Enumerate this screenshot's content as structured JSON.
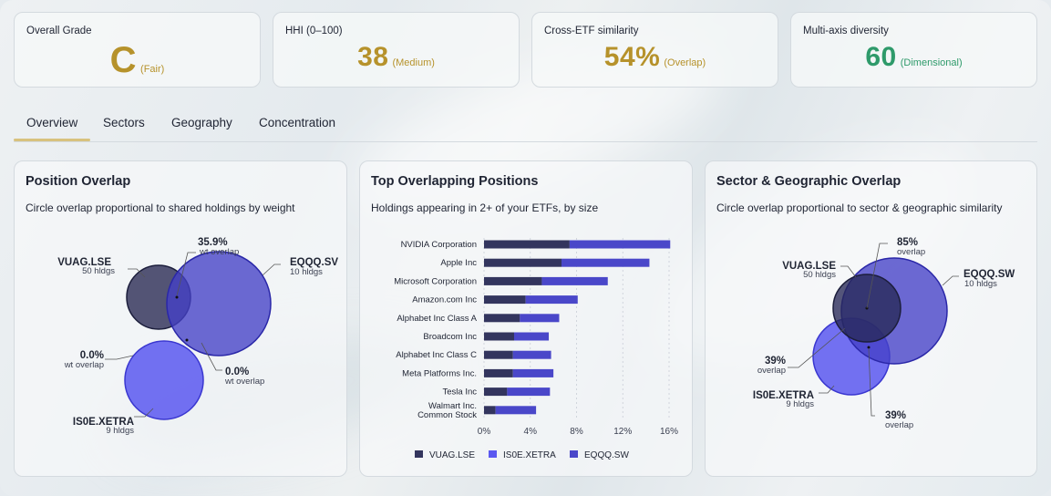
{
  "kpis": [
    {
      "label": "Overall Grade",
      "value": "C",
      "sub": "(Fair)",
      "color": "#b6922b"
    },
    {
      "label": "HHI (0–100)",
      "value": "38",
      "sub": "(Medium)",
      "color": "#b6922b"
    },
    {
      "label": "Cross-ETF similarity",
      "value": "54%",
      "sub": "(Overlap)",
      "color": "#b6922b"
    },
    {
      "label": "Multi-axis diversity",
      "value": "60",
      "sub": "(Dimensional)",
      "color": "#2e9a6a"
    }
  ],
  "tabs": [
    {
      "label": "Overview",
      "active": true
    },
    {
      "label": "Sectors",
      "active": false
    },
    {
      "label": "Geography",
      "active": false
    },
    {
      "label": "Concentration",
      "active": false
    }
  ],
  "position_overlap": {
    "title": "Position Overlap",
    "subtitle": "Circle overlap proportional to shared holdings by weight",
    "etfs": [
      {
        "name": "VUAG.LSE",
        "holdings": "50 hldgs"
      },
      {
        "name": "EQQQ.SV",
        "holdings": "10 hldgs"
      },
      {
        "name": "IS0E.XETRA",
        "holdings": "9 hldgs"
      }
    ],
    "overlaps": [
      {
        "value": "35.9%",
        "label": "wt overlap"
      },
      {
        "value": "0.0%",
        "label": "wt overlap"
      },
      {
        "value": "0.0%",
        "label": "wt overlap"
      }
    ]
  },
  "top_overlapping": {
    "title": "Top Overlapping Positions",
    "subtitle": "Holdings appearing in 2+ of your ETFs, by size",
    "chart_data": {
      "type": "bar",
      "stacked": true,
      "orientation": "horizontal",
      "categories": [
        "NVIDIA Corporation",
        "Apple Inc",
        "Microsoft Corporation",
        "Amazon.com Inc",
        "Alphabet Inc Class A",
        "Broadcom Inc",
        "Alphabet Inc Class C",
        "Meta Platforms Inc.",
        "Tesla Inc",
        "Walmart Inc. Common Stock"
      ],
      "series": [
        {
          "name": "VUAG.LSE",
          "color": "#33355e",
          "values": [
            7.4,
            6.7,
            5.0,
            3.6,
            3.1,
            2.6,
            2.5,
            2.5,
            2.0,
            1.0
          ]
        },
        {
          "name": "IS0E.XETRA",
          "color": "#5b58f0",
          "values": [
            0,
            0,
            0,
            0,
            0,
            0,
            0,
            0,
            0,
            0
          ]
        },
        {
          "name": "EQQQ.SW",
          "color": "#4a47c9",
          "values": [
            8.7,
            7.6,
            5.7,
            4.5,
            3.4,
            3.0,
            3.3,
            3.5,
            3.7,
            3.5
          ]
        }
      ],
      "xticks": [
        "0%",
        "4%",
        "8%",
        "12%",
        "16%"
      ],
      "xlim": [
        0,
        16
      ]
    }
  },
  "sector_geo_overlap": {
    "title": "Sector & Geographic Overlap",
    "subtitle": "Circle overlap proportional to sector & geographic similarity",
    "etfs": [
      {
        "name": "VUAG.LSE",
        "holdings": "50 hldgs"
      },
      {
        "name": "EQQQ.SW",
        "holdings": "10 hldgs"
      },
      {
        "name": "IS0E.XETRA",
        "holdings": "9 hldgs"
      }
    ],
    "overlaps": [
      {
        "value": "85%",
        "label": "overlap"
      },
      {
        "value": "39%",
        "label": "overlap"
      },
      {
        "value": "39%",
        "label": "overlap"
      }
    ]
  }
}
